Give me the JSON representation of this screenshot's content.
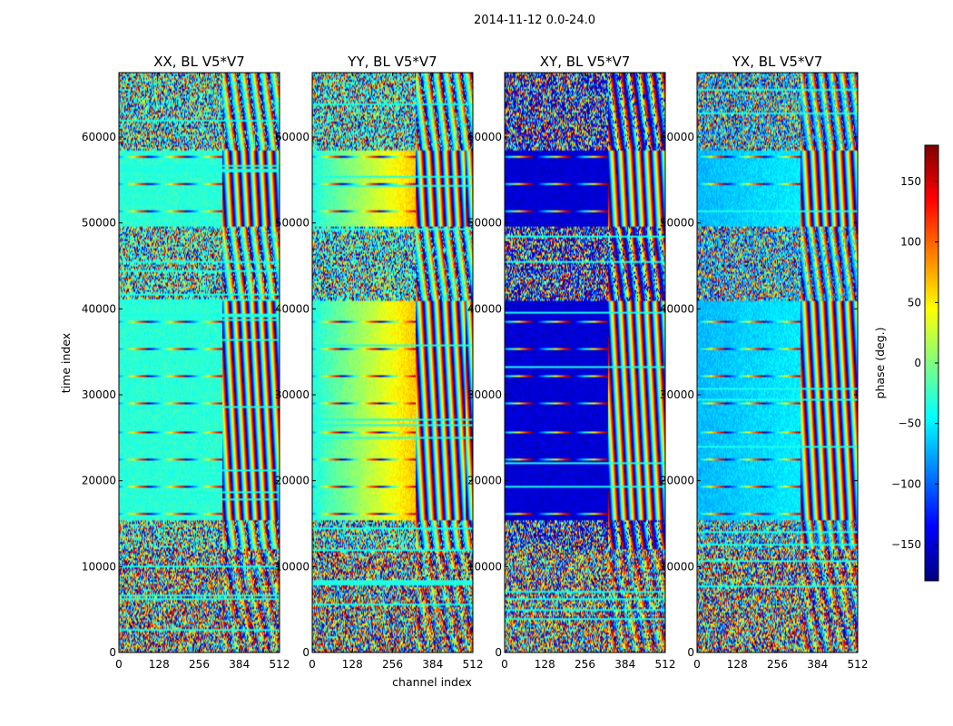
{
  "figure": {
    "suptitle": "2014-11-12 0.0-24.0",
    "xlabel": "channel index",
    "ylabel": "time index"
  },
  "chart_data": {
    "type": "heatmap",
    "x_range": [
      0,
      512
    ],
    "y_range": [
      0,
      67500
    ],
    "x_ticks": [
      0,
      128,
      256,
      384,
      512
    ],
    "y_ticks": [
      0,
      10000,
      20000,
      30000,
      40000,
      50000,
      60000
    ],
    "x_tick_labels": [
      "0",
      "128",
      "256",
      "384",
      "512"
    ],
    "y_tick_labels": [
      "0",
      "10000",
      "20000",
      "30000",
      "40000",
      "50000",
      "60000"
    ],
    "panels": [
      {
        "title": "XX, BL V5*V7",
        "base_phase": -30,
        "base_drift": 0,
        "edge_drift": 0
      },
      {
        "title": "YY, BL V5*V7",
        "base_phase": -35,
        "base_drift": 100,
        "edge_drift": 110
      },
      {
        "title": "XY, BL V5*V7",
        "base_phase": -150,
        "base_drift": 0,
        "edge_drift": 0
      },
      {
        "title": "YX, BL V5*V7",
        "base_phase": -70,
        "base_drift": 20,
        "edge_drift": 0
      }
    ],
    "colorbar": {
      "label": "phase (deg.)",
      "range": [
        -180,
        180
      ],
      "ticks": [
        150,
        100,
        50,
        0,
        -50,
        -100,
        -150
      ],
      "tick_labels": [
        "150",
        "100",
        "50",
        "0",
        "−50",
        "−100",
        "−150"
      ],
      "colormap": "jet",
      "colormap_stops": [
        "#00007f",
        "#0000ff",
        "#007fff",
        "#00ffff",
        "#7fff7f",
        "#ffff00",
        "#ff7f00",
        "#ff0000",
        "#7f0000"
      ]
    }
  }
}
